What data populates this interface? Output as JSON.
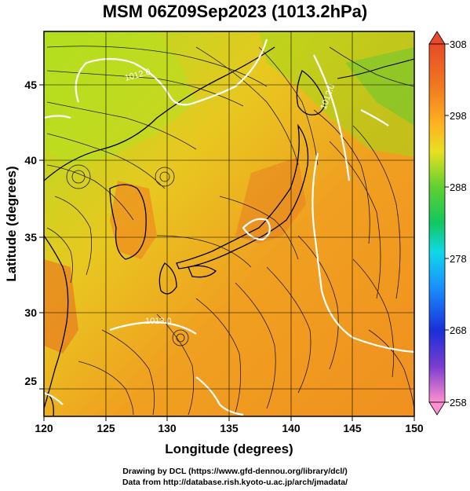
{
  "title": "MSM 06Z09Sep2023 (1013.2hPa)",
  "map": {
    "xlabel": "Longitude (degrees)",
    "ylabel": "Latitude  (degrees)",
    "lon_ticks": [
      "120",
      "125",
      "130",
      "135",
      "140",
      "145",
      "150"
    ],
    "lat_ticks": [
      "25",
      "30",
      "35",
      "40",
      "45"
    ],
    "contour_labels": [
      "1012.0",
      "1012.0",
      "1013.0"
    ],
    "field": "temperature with streamlines and isobars",
    "colors": {
      "land_outline": "#000000",
      "isobar": "#ffffff"
    }
  },
  "colorbar": {
    "tick_labels": [
      "308",
      "298",
      "288",
      "278",
      "268",
      "258"
    ],
    "colors": [
      "#e83a7a",
      "#ff8fd0",
      "#7a3cd0",
      "#1a2fd8",
      "#1a8fff",
      "#10d8e8",
      "#10c860",
      "#2ad83a",
      "#c8e020",
      "#ffd020",
      "#ff9a20",
      "#f07a20",
      "#e84a2a"
    ]
  },
  "credits": {
    "line1": "Drawing by DCL (https://www.gfd-dennou.org/library/dcl/)",
    "line2": "Data from http://database.rish.kyoto-u.ac.jp/arch/jmadata/"
  }
}
